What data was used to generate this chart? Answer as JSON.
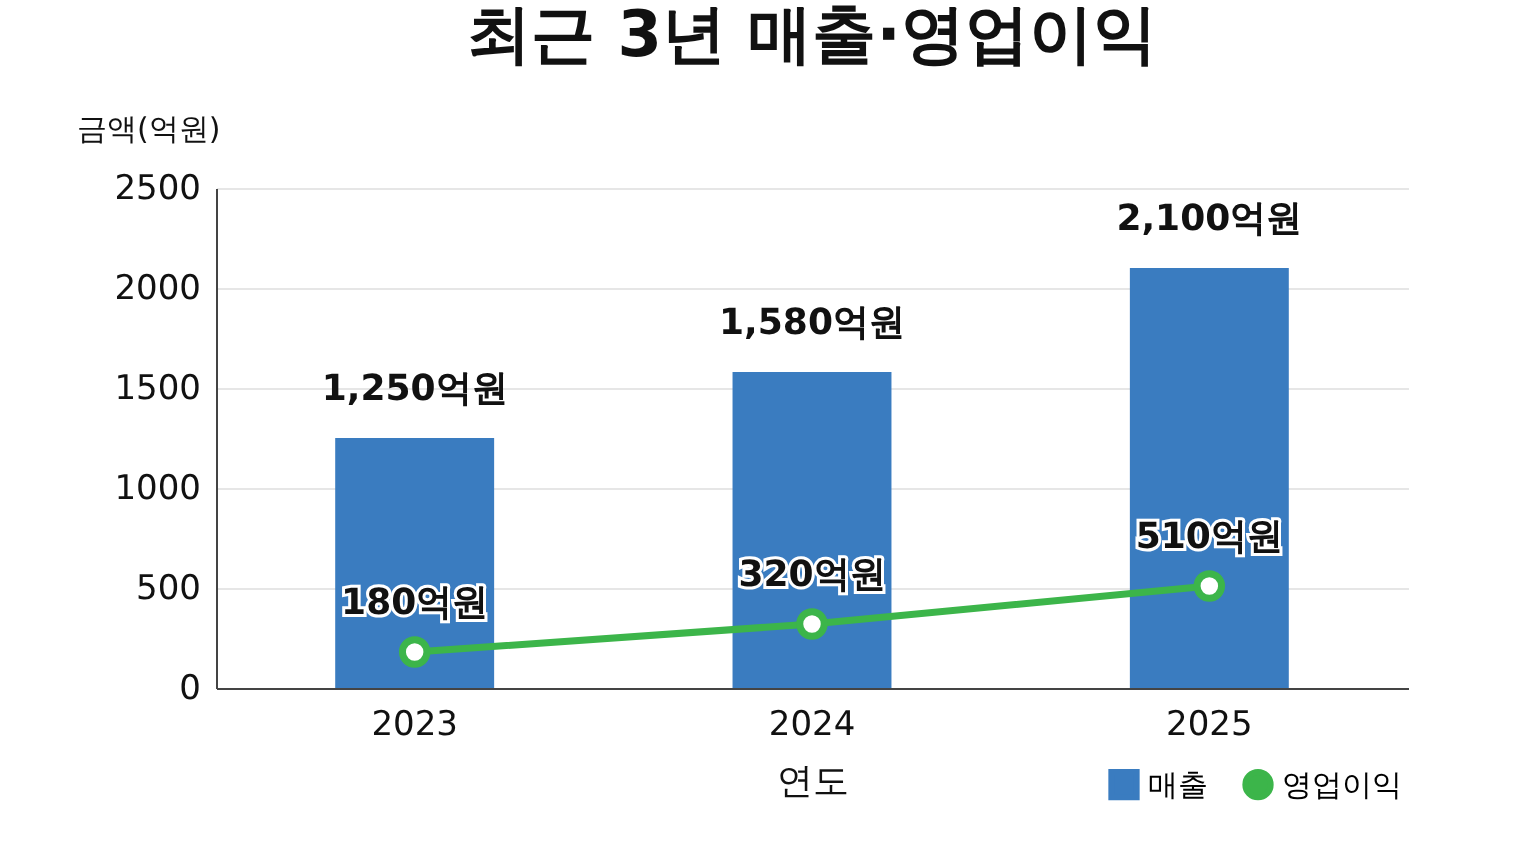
{
  "chart_data": {
    "type": "bar",
    "title": "최근 3년 매출·영업이익",
    "xlabel": "연도",
    "ylabel": "금액(억원)",
    "categories": [
      "2023",
      "2024",
      "2025"
    ],
    "series": [
      {
        "name": "매출",
        "color": "#3a7cc0",
        "values": [
          1250,
          1580,
          2100
        ],
        "value_labels": [
          "1,250억원",
          "1,580억원",
          "2,100억원"
        ]
      },
      {
        "name": "영업이익",
        "type": "line",
        "color": "#3cb54a",
        "values": [
          180,
          320,
          510
        ],
        "value_labels": [
          "180억원",
          "320억원",
          "510억원"
        ]
      }
    ],
    "ylim": [
      0,
      2500
    ],
    "yticks": [
      0,
      500,
      1000,
      1500,
      2000,
      2500
    ],
    "grid": "y",
    "legend": "bottom right",
    "marker": "circle"
  }
}
